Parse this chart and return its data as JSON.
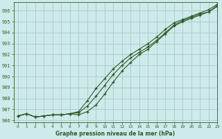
{
  "title": "Graphe pression niveau de la mer (hPa)",
  "background_color": "#ceeaea",
  "grid_color": "#aecece",
  "line_color": "#2d5a27",
  "xlim": [
    -0.5,
    23
  ],
  "ylim": [
    985.8,
    996.8
  ],
  "yticks": [
    986,
    987,
    988,
    989,
    990,
    991,
    992,
    993,
    994,
    995,
    996
  ],
  "xticks": [
    0,
    1,
    2,
    3,
    4,
    5,
    6,
    7,
    8,
    9,
    10,
    11,
    12,
    13,
    14,
    15,
    16,
    17,
    18,
    19,
    20,
    21,
    22,
    23
  ],
  "line1_x": [
    0,
    1,
    2,
    3,
    4,
    5,
    6,
    7,
    8,
    9,
    10,
    11,
    12,
    13,
    14,
    15,
    16,
    17,
    18,
    19,
    20,
    21,
    22,
    23
  ],
  "line1_y": [
    986.4,
    986.6,
    986.3,
    986.4,
    986.5,
    986.5,
    986.6,
    986.7,
    987.3,
    988.2,
    989.2,
    990.2,
    991.0,
    991.7,
    992.2,
    992.7,
    993.3,
    994.0,
    994.7,
    995.1,
    995.4,
    995.7,
    995.9,
    996.5
  ],
  "line2_x": [
    0,
    1,
    2,
    3,
    4,
    5,
    6,
    7,
    8,
    9,
    10,
    11,
    12,
    13,
    14,
    15,
    16,
    17,
    18,
    19,
    20,
    21,
    22,
    23
  ],
  "line2_y": [
    986.4,
    986.6,
    986.3,
    986.4,
    986.5,
    986.5,
    986.6,
    986.8,
    987.8,
    988.9,
    989.8,
    990.7,
    991.4,
    992.0,
    992.5,
    993.0,
    993.6,
    994.3,
    994.9,
    995.2,
    995.5,
    995.8,
    996.1,
    996.6
  ],
  "line3_x": [
    0,
    1,
    2,
    3,
    4,
    5,
    6,
    7,
    8,
    9,
    10,
    11,
    12,
    13,
    14,
    15,
    16,
    17,
    18,
    19,
    20,
    21,
    22,
    23
  ],
  "line3_y": [
    986.4,
    986.6,
    986.3,
    986.4,
    986.5,
    986.5,
    986.6,
    986.5,
    986.8,
    987.4,
    988.4,
    989.5,
    990.5,
    991.3,
    992.0,
    992.5,
    993.2,
    993.9,
    994.6,
    995.0,
    995.3,
    995.6,
    995.9,
    996.4
  ]
}
